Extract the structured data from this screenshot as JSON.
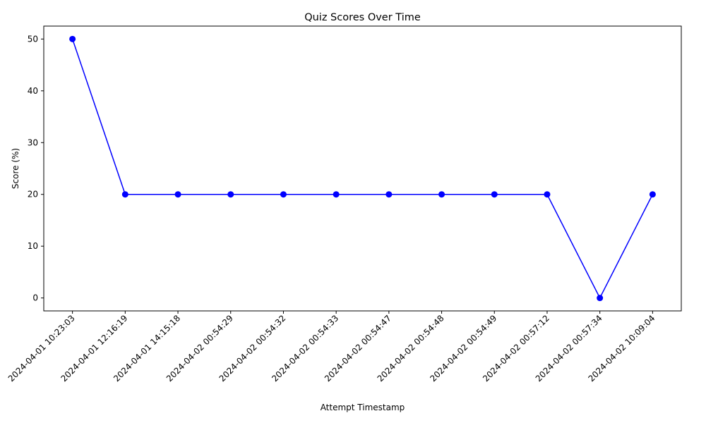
{
  "chart_data": {
    "type": "line",
    "title": "Quiz Scores Over Time",
    "xlabel": "Attempt Timestamp",
    "ylabel": "Score (%)",
    "categories": [
      "2024-04-01 10:23:03",
      "2024-04-01 12:16:19",
      "2024-04-01 14:15:18",
      "2024-04-02 00:54:29",
      "2024-04-02 00:54:32",
      "2024-04-02 00:54:33",
      "2024-04-02 00:54:47",
      "2024-04-02 00:54:48",
      "2024-04-02 00:54:49",
      "2024-04-02 00:57:12",
      "2024-04-02 00:57:34",
      "2024-04-02 10:09:04"
    ],
    "values": [
      50,
      20,
      20,
      20,
      20,
      20,
      20,
      20,
      20,
      20,
      0,
      20
    ],
    "yticks": [
      "0",
      "10",
      "20",
      "30",
      "40",
      "50"
    ],
    "ylim": [
      -2.5,
      52.5
    ],
    "grid": false,
    "line_color": "#0000ff",
    "marker_color": "#0000ff"
  }
}
